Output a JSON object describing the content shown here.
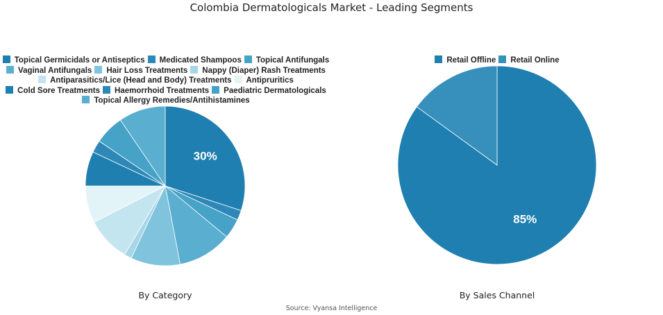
{
  "title": "Colombia Dermatologicals Market - Leading Segments",
  "source": "Source: Vyansa Intelligence",
  "chart_data": [
    {
      "type": "pie",
      "caption": "By Category",
      "label_color": "#ffffff",
      "slices": [
        {
          "label": "Topical Germicidals or Antiseptics",
          "value": 30,
          "color": "#1f7fb0",
          "show_label": "30%"
        },
        {
          "label": "Medicated Shampoos",
          "value": 2,
          "color": "#2e88b7",
          "show_label": ""
        },
        {
          "label": "Topical Antifungals",
          "value": 4,
          "color": "#46a2c7",
          "show_label": ""
        },
        {
          "label": "Vaginal Antifungals",
          "value": 11,
          "color": "#5aaed0",
          "show_label": ""
        },
        {
          "label": "Hair Loss Treatments",
          "value": 10,
          "color": "#7fc3dc",
          "show_label": ""
        },
        {
          "label": "Nappy (Diaper) Rash Treatments",
          "value": 1.5,
          "color": "#a7d6e8",
          "show_label": ""
        },
        {
          "label": "Antiparasitics/Lice (Head and Body) Treatments",
          "value": 9,
          "color": "#c3e5ef",
          "show_label": ""
        },
        {
          "label": "Antipruritics",
          "value": 7.5,
          "color": "#e3f4f9",
          "show_label": ""
        },
        {
          "label": "Cold Sore Treatments",
          "value": 7,
          "color": "#1f7fb0",
          "show_label": ""
        },
        {
          "label": "Haemorrhoid Treatments",
          "value": 2.5,
          "color": "#2e88b7",
          "show_label": ""
        },
        {
          "label": "Paediatric Dermatologicals",
          "value": 6,
          "color": "#46a2c7",
          "show_label": ""
        },
        {
          "label": "Topical Allergy Remedies/Antihistamines",
          "value": 9.5,
          "color": "#5aaed0",
          "show_label": ""
        }
      ]
    },
    {
      "type": "pie",
      "caption": "By Sales Channel",
      "label_color": "#ffffff",
      "slices": [
        {
          "label": "Retail Offline",
          "value": 85,
          "color": "#1f7fb0",
          "show_label": "85%"
        },
        {
          "label": "Retail Online",
          "value": 15,
          "color": "#3790bc",
          "show_label": ""
        }
      ]
    }
  ]
}
